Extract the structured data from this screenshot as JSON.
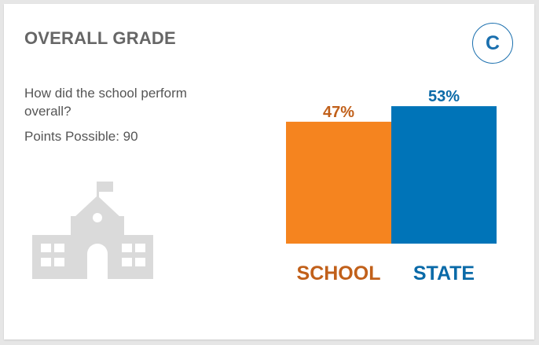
{
  "card": {
    "title": "OVERALL GRADE",
    "grade": "C",
    "question": "How did the school perform overall?",
    "points_label": "Points Possible: 90"
  },
  "icons": {
    "building": "school-building-icon"
  },
  "colors": {
    "school": "#f5841f",
    "state": "#0074b8",
    "school_label": "#c1601a",
    "state_label": "#0a6aa8",
    "icon": "#dadada",
    "badge": "#1a6fae"
  },
  "chart_data": {
    "type": "bar",
    "categories": [
      "SCHOOL",
      "STATE"
    ],
    "values": [
      47,
      53
    ],
    "value_labels": [
      "47%",
      "53%"
    ],
    "ylim": [
      0,
      100
    ],
    "colors": [
      "#f5841f",
      "#0074b8"
    ],
    "label_colors": [
      "#c1601a",
      "#0a6aa8"
    ]
  }
}
